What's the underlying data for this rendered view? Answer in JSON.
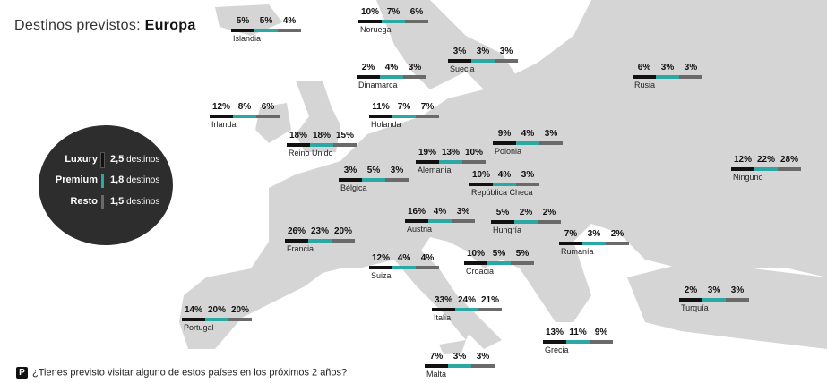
{
  "title": {
    "prefix": "Destinos previstos:",
    "region": "Europa"
  },
  "legend": [
    {
      "name": "Luxury",
      "value": "2,5",
      "unit": "destinos",
      "color": "#111111"
    },
    {
      "name": "Premium",
      "value": "1,8",
      "unit": "destinos",
      "color": "#2aa9a4"
    },
    {
      "name": "Resto",
      "value": "1,5",
      "unit": "destinos",
      "color": "#6a6a6a"
    }
  ],
  "question": {
    "icon": "P",
    "text": "¿Tienes previsto visitar alguno de estos países en los próximos 2 años?"
  },
  "chart_data": {
    "type": "table",
    "title": "Destinos previstos: Europa",
    "series_names": [
      "Luxury",
      "Premium",
      "Resto"
    ],
    "series_colors": [
      "#111111",
      "#2aa9a4",
      "#6a6a6a"
    ],
    "countries": [
      {
        "name": "Islandia",
        "values": [
          "5%",
          "5%",
          "4%"
        ]
      },
      {
        "name": "Noruega",
        "values": [
          "10%",
          "7%",
          "6%"
        ]
      },
      {
        "name": "Suecia",
        "values": [
          "3%",
          "3%",
          "3%"
        ]
      },
      {
        "name": "Dinamarca",
        "values": [
          "2%",
          "4%",
          "3%"
        ]
      },
      {
        "name": "Rusia",
        "values": [
          "6%",
          "3%",
          "3%"
        ]
      },
      {
        "name": "Irlanda",
        "values": [
          "12%",
          "8%",
          "6%"
        ]
      },
      {
        "name": "Holanda",
        "values": [
          "11%",
          "7%",
          "7%"
        ]
      },
      {
        "name": "Reino Unido",
        "values": [
          "18%",
          "18%",
          "15%"
        ]
      },
      {
        "name": "Polonia",
        "values": [
          "9%",
          "4%",
          "3%"
        ]
      },
      {
        "name": "Alemania",
        "values": [
          "19%",
          "13%",
          "10%"
        ]
      },
      {
        "name": "Ninguno",
        "values": [
          "12%",
          "22%",
          "28%"
        ]
      },
      {
        "name": "Bélgica",
        "values": [
          "3%",
          "5%",
          "3%"
        ]
      },
      {
        "name": "República Checa",
        "values": [
          "10%",
          "4%",
          "3%"
        ]
      },
      {
        "name": "Austria",
        "values": [
          "16%",
          "4%",
          "3%"
        ]
      },
      {
        "name": "Hungría",
        "values": [
          "5%",
          "2%",
          "2%"
        ]
      },
      {
        "name": "Francia",
        "values": [
          "26%",
          "23%",
          "20%"
        ]
      },
      {
        "name": "Rumanía",
        "values": [
          "7%",
          "3%",
          "2%"
        ]
      },
      {
        "name": "Suiza",
        "values": [
          "12%",
          "4%",
          "4%"
        ]
      },
      {
        "name": "Croacia",
        "values": [
          "10%",
          "5%",
          "5%"
        ]
      },
      {
        "name": "Portugal",
        "values": [
          "14%",
          "20%",
          "20%"
        ]
      },
      {
        "name": "Turquía",
        "values": [
          "2%",
          "3%",
          "3%"
        ]
      },
      {
        "name": "Italia",
        "values": [
          "33%",
          "24%",
          "21%"
        ]
      },
      {
        "name": "Grecia",
        "values": [
          "13%",
          "11%",
          "9%"
        ]
      },
      {
        "name": "Malta",
        "values": [
          "7%",
          "3%",
          "3%"
        ]
      }
    ]
  }
}
